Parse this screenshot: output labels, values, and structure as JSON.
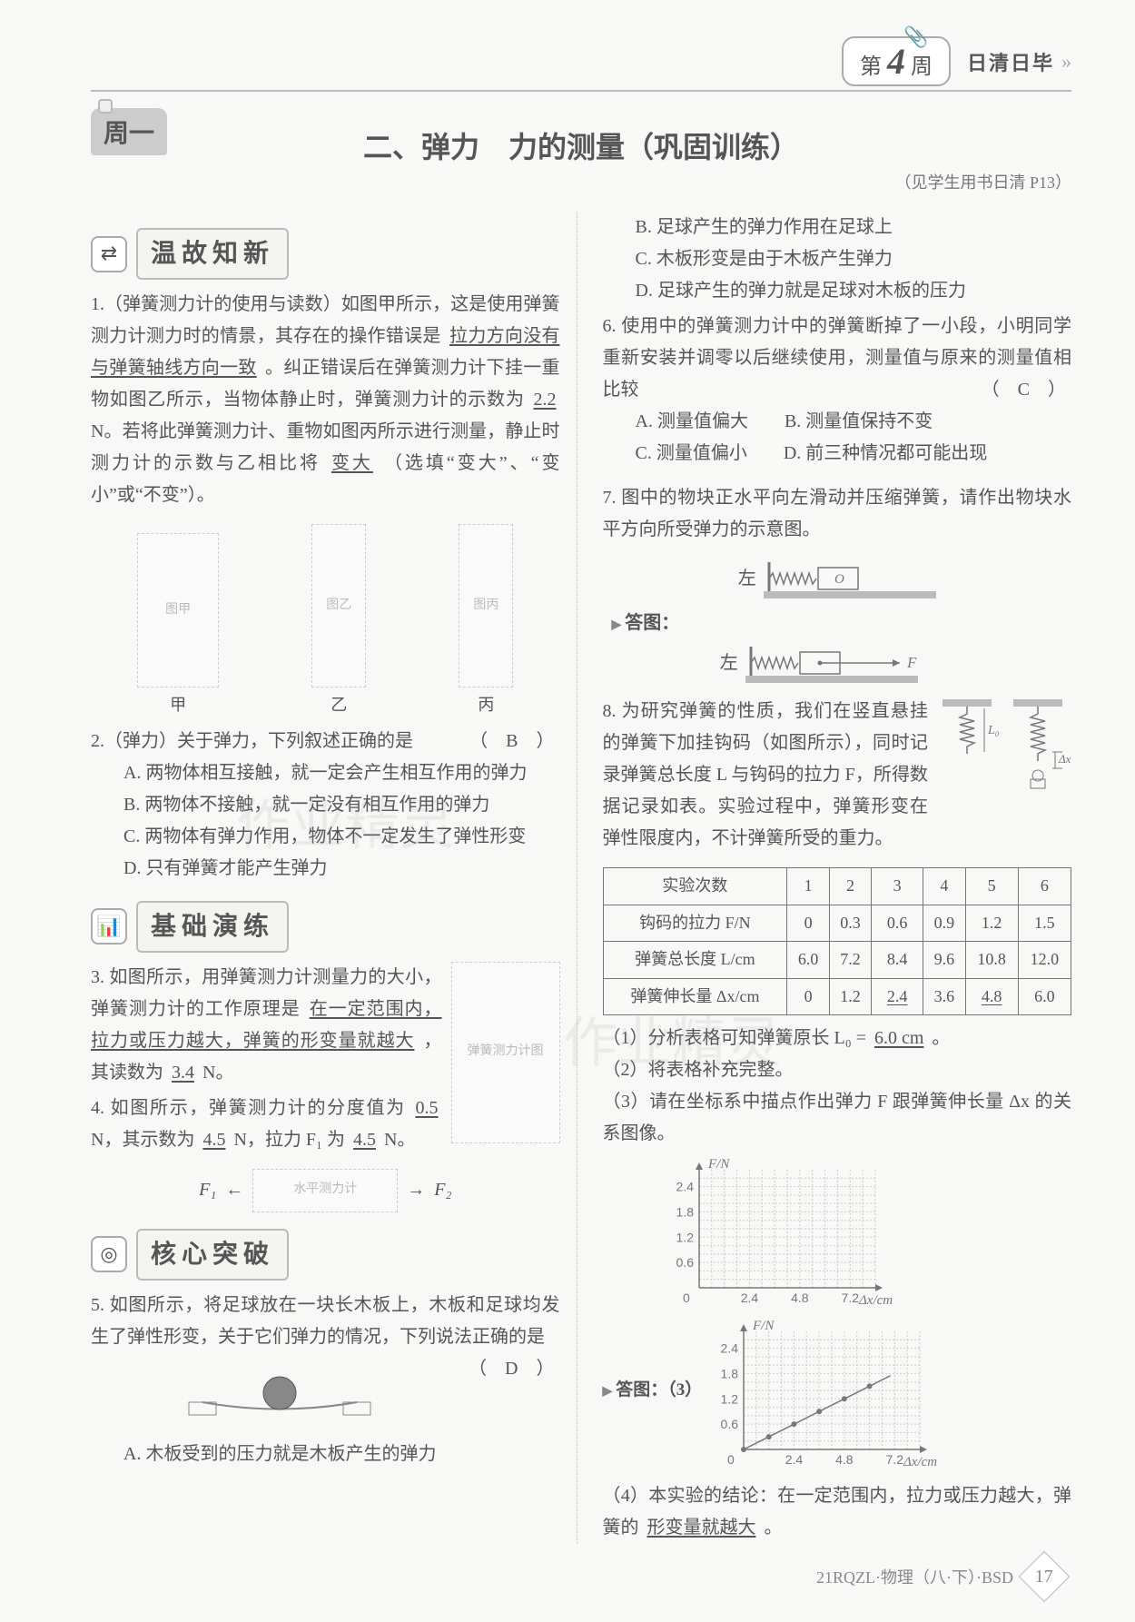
{
  "header": {
    "week_prefix": "第",
    "week_number": "4",
    "week_suffix": "周",
    "section_name": "日清日毕"
  },
  "day_tag": "周一",
  "main_title": "二、弹力　力的测量（巩固训练）",
  "subtitle_note": "（见学生用书日清 P13）",
  "sections": {
    "s1": "温故知新",
    "s2": "基础演练",
    "s3": "核心突破"
  },
  "q1": {
    "text_a": "1.（弹簧测力计的使用与读数）如图甲所示，这是使用弹簧测力计测力时的情景，其存在的操作错误是",
    "ans_a": "拉力方向没有与弹簧轴线方向一致",
    "text_b": "。纠正错误后在弹簧测力计下挂一重物如图乙所示，当物体静止时，弹簧测力计的示数为",
    "ans_b": "2.2",
    "text_c": "N。若将此弹簧测力计、重物如图丙所示进行测量，静止时测力计的示数与乙相比将",
    "ans_c": "变大",
    "text_d": "（选填“变大”、“变小”或“不变”）。",
    "fig_labels": {
      "a": "甲",
      "b": "乙",
      "c": "丙"
    }
  },
  "q2": {
    "text": "2.（弹力）关于弹力，下列叙述正确的是",
    "answer": "（　B　）",
    "opts": {
      "A": "A. 两物体相互接触，就一定会产生相互作用的弹力",
      "B": "B. 两物体不接触，就一定没有相互作用的弹力",
      "C": "C. 两物体有弹力作用，物体不一定发生了弹性形变",
      "D": "D. 只有弹簧才能产生弹力"
    }
  },
  "q3": {
    "text_a": "3. 如图所示，用弹簧测力计测量力的大小，弹簧测力计的工作原理是",
    "ans_a": "在一定范围内，拉力或压力越大，弹簧的形变量就越大",
    "text_b": "，其读数为",
    "ans_b": "3.4",
    "text_c": "N。"
  },
  "q4": {
    "text_a": "4. 如图所示，弹簧测力计的分度值为",
    "ans_a": "0.5",
    "text_b": "N，其示数为",
    "ans_b": "4.5",
    "text_c": "N，拉力",
    "f1_label": "F₁ 为",
    "ans_c": "4.5",
    "text_d": "N。",
    "arrow_left": "F₁",
    "arrow_right": "F₂"
  },
  "q5": {
    "text": "5. 如图所示，将足球放在一块长木板上，木板和足球均发生了弹性形变，关于它们弹力的情况，下列说法正确的是",
    "answer": "（　D　）",
    "optA": "A. 木板受到的压力就是木板产生的弹力",
    "optB": "B. 足球产生的弹力作用在足球上",
    "optC": "C. 木板形变是由于木板产生弹力",
    "optD": "D. 足球产生的弹力就是足球对木板的压力"
  },
  "q6": {
    "text": "6. 使用中的弹簧测力计中的弹簧断掉了一小段，小明同学重新安装并调零以后继续使用，测量值与原来的测量值相比较",
    "answer": "（　C　）",
    "opts": {
      "A": "A. 测量值偏大",
      "B": "B. 测量值保持不变",
      "C": "C. 测量值偏小",
      "D": "D. 前三种情况都可能出现"
    }
  },
  "q7": {
    "text": "7. 图中的物块正水平向左滑动并压缩弹簧，请作出物块水平方向所受弹力的示意图。",
    "left_label": "左",
    "O_label": "O",
    "ans_label": "答图：",
    "F_label": "F"
  },
  "q8": {
    "text": "8. 为研究弹簧的性质，我们在竖直悬挂的弹簧下加挂钩码（如图所示），同时记录弹簧总长度 L 与钩码的拉力 F，所得数据记录如表。实验过程中，弹簧形变在弹性限度内，不计弹簧所受的重力。",
    "table": {
      "headers": [
        "实验次数",
        "1",
        "2",
        "3",
        "4",
        "5",
        "6"
      ],
      "rows": [
        {
          "label": "钩码的拉力 F/N",
          "cells": [
            "0",
            "0.3",
            "0.6",
            "0.9",
            "1.2",
            "1.5"
          ]
        },
        {
          "label": "弹簧总长度 L/cm",
          "cells": [
            "6.0",
            "7.2",
            "8.4",
            "9.6",
            "10.8",
            "12.0"
          ]
        },
        {
          "label": "弹簧伸长量 Δx/cm",
          "cells": [
            "0",
            "1.2",
            "2.4",
            "3.6",
            "4.8",
            "6.0"
          ]
        }
      ],
      "underline_cells": [
        "2.4",
        "4.8"
      ]
    },
    "sub1_a": "（1）分析表格可知弹簧原长 L₀ =",
    "sub1_ans": "6.0 cm",
    "sub1_b": "。",
    "sub2": "（2）将表格补充完整。",
    "sub3": "（3）请在坐标系中描点作出弹力 F 跟弹簧伸长量 Δx 的关系图像。",
    "sub4_a": "（4）本实验的结论：在一定范围内，拉力或压力越大，弹簧的",
    "sub4_ans": "形变量就越大",
    "sub4_b": "。",
    "ans_label": "答图：（3）",
    "fig_labels": {
      "L0": "L₀",
      "dx": "Δx"
    }
  },
  "chart": {
    "y_label": "F/N",
    "x_label": "Δx/cm",
    "y_ticks": [
      0,
      0.6,
      1.2,
      1.8,
      2.4
    ],
    "x_ticks": [
      0,
      2.4,
      4.8,
      7.2
    ],
    "x_range": [
      0,
      8.4
    ],
    "y_range": [
      0,
      2.8
    ],
    "bg": "#f8f8f6",
    "grid_color": "#cccccc",
    "axis_color": "#777777",
    "line_color": "#666666",
    "points": [
      {
        "x": 0,
        "y": 0
      },
      {
        "x": 1.2,
        "y": 0.3
      },
      {
        "x": 2.4,
        "y": 0.6
      },
      {
        "x": 3.6,
        "y": 0.9
      },
      {
        "x": 4.8,
        "y": 1.2
      },
      {
        "x": 6.0,
        "y": 1.5
      }
    ]
  },
  "footer": {
    "code": "21RQZL·物理（八·下）·BSD",
    "page": "17"
  },
  "watermark": "作业精灵"
}
